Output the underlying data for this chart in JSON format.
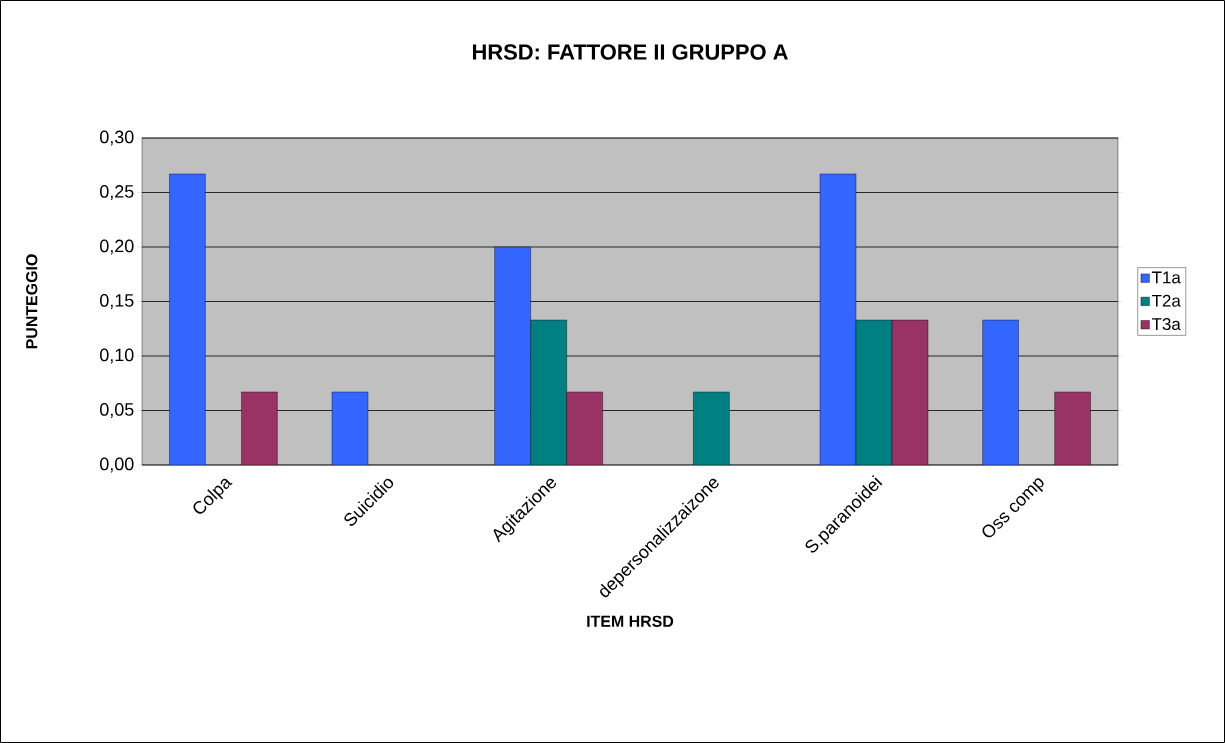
{
  "chart_data": {
    "type": "bar",
    "title": "HRSD: FATTORE II GRUPPO A",
    "xlabel": "ITEM HRSD",
    "ylabel": "PUNTEGGIO",
    "categories": [
      "Colpa",
      "Suicidio",
      "Agitazione",
      "depersonalizzaizone",
      "S.paranoidei",
      "Oss comp"
    ],
    "series": [
      {
        "name": "T1a",
        "color": "#3366ff",
        "values": [
          0.267,
          0.067,
          0.2,
          null,
          0.267,
          0.133
        ]
      },
      {
        "name": "T2a",
        "color": "#008080",
        "values": [
          null,
          null,
          0.133,
          0.067,
          0.133,
          null
        ]
      },
      {
        "name": "T3a",
        "color": "#993366",
        "values": [
          0.067,
          null,
          0.067,
          null,
          0.133,
          0.067
        ]
      }
    ],
    "ylim": [
      0,
      0.3
    ],
    "yticks": [
      {
        "value": 0,
        "label": "0,00"
      },
      {
        "value": 0.05,
        "label": "0,05"
      },
      {
        "value": 0.1,
        "label": "0,10"
      },
      {
        "value": 0.15,
        "label": "0,15"
      },
      {
        "value": 0.2,
        "label": "0,20"
      },
      {
        "value": 0.25,
        "label": "0,25"
      },
      {
        "value": 0.3,
        "label": "0,30"
      }
    ],
    "grid": "y",
    "legend": "right"
  }
}
